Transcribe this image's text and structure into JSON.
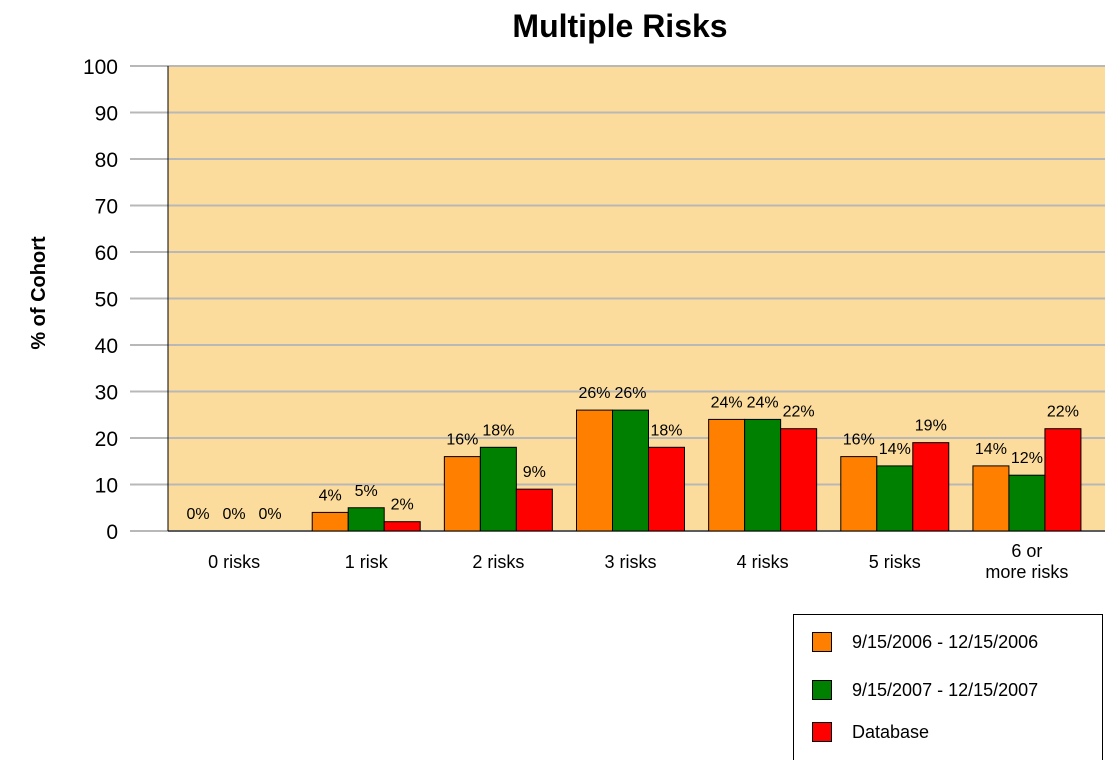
{
  "chart_data": {
    "type": "bar",
    "title": "Multiple Risks",
    "xlabel": "",
    "ylabel": "% of Cohort",
    "ylim": [
      0,
      100
    ],
    "yticks": [
      0,
      10,
      20,
      30,
      40,
      50,
      60,
      70,
      80,
      90,
      100
    ],
    "grid": true,
    "legend_position": "bottom-right",
    "categories": [
      "0 risks",
      "1 risk",
      "2 risks",
      "3 risks",
      "4 risks",
      "5 risks",
      "6 or more risks"
    ],
    "series": [
      {
        "name": "9/15/2006 - 12/15/2006",
        "color": "#ff8000",
        "values": [
          0,
          4,
          16,
          26,
          24,
          16,
          14
        ],
        "labels": [
          "0%",
          "4%",
          "16%",
          "26%",
          "24%",
          "16%",
          "14%"
        ]
      },
      {
        "name": "9/15/2007 - 12/15/2007",
        "color": "#008000",
        "values": [
          0,
          5,
          18,
          26,
          24,
          14,
          12
        ],
        "labels": [
          "0%",
          "5%",
          "18%",
          "26%",
          "24%",
          "14%",
          "12%"
        ]
      },
      {
        "name": "Database",
        "color": "#ff0000",
        "values": [
          0,
          2,
          9,
          18,
          22,
          19,
          22
        ],
        "labels": [
          "0%",
          "2%",
          "9%",
          "18%",
          "22%",
          "19%",
          "22%"
        ]
      }
    ],
    "plot_background": "#fcdc9c",
    "grid_color": "#b8b8b8"
  }
}
